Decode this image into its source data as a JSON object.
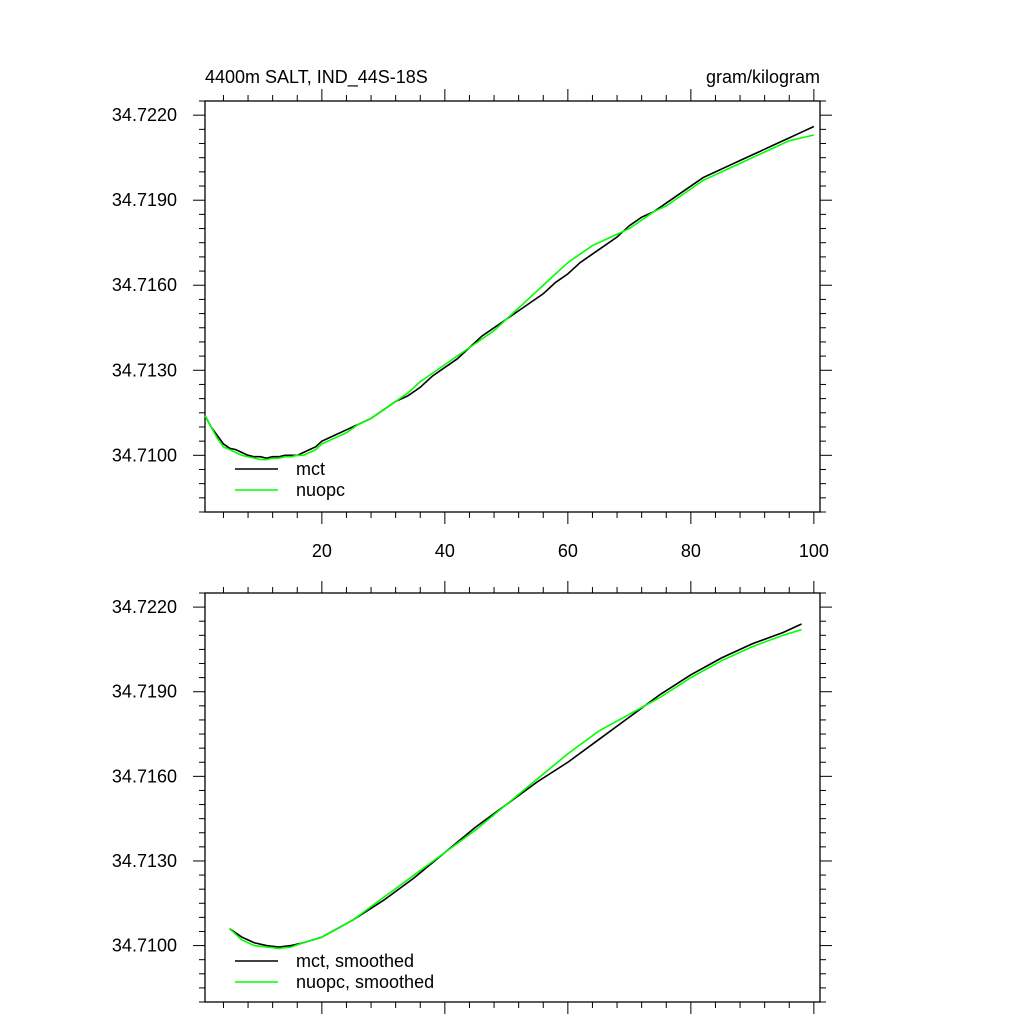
{
  "chart_data": [
    {
      "type": "line",
      "title": "4400m SALT, IND_44S-18S",
      "units": "gram/kilogram",
      "xlim": [
        1,
        101
      ],
      "ylim": [
        34.708,
        34.7225
      ],
      "x_ticks": [
        20,
        40,
        60,
        80,
        100
      ],
      "x_tick_labels": [
        "20",
        "40",
        "60",
        "80",
        "100"
      ],
      "y_ticks": [
        34.71,
        34.713,
        34.716,
        34.719,
        34.722
      ],
      "y_tick_labels": [
        "34.7100",
        "34.7130",
        "34.7160",
        "34.7190",
        "34.7220"
      ],
      "legend_position": "bottom-left",
      "series": [
        {
          "name": "mct",
          "color": "#000000",
          "x": [
            1,
            2,
            3,
            4,
            5,
            6,
            7,
            8,
            9,
            10,
            11,
            12,
            13,
            14,
            15,
            16,
            17,
            18,
            19,
            20,
            22,
            24,
            26,
            28,
            30,
            32,
            34,
            36,
            38,
            40,
            42,
            44,
            46,
            48,
            50,
            52,
            54,
            56,
            58,
            60,
            62,
            64,
            66,
            68,
            70,
            72,
            74,
            76,
            78,
            80,
            82,
            84,
            86,
            88,
            90,
            92,
            94,
            96,
            98,
            100
          ],
          "y": [
            34.7114,
            34.711,
            34.7107,
            34.7104,
            34.71025,
            34.7102,
            34.7101,
            34.71,
            34.70995,
            34.70995,
            34.7099,
            34.70995,
            34.70995,
            34.71,
            34.71,
            34.71,
            34.7101,
            34.7102,
            34.7103,
            34.7105,
            34.7107,
            34.7109,
            34.7111,
            34.7113,
            34.7116,
            34.7119,
            34.7121,
            34.7124,
            34.7128,
            34.7131,
            34.7134,
            34.7138,
            34.7142,
            34.7145,
            34.7148,
            34.7151,
            34.7154,
            34.7157,
            34.7161,
            34.7164,
            34.7168,
            34.7171,
            34.7174,
            34.7177,
            34.7181,
            34.7184,
            34.7186,
            34.7189,
            34.7192,
            34.7195,
            34.7198,
            34.72,
            34.7202,
            34.7204,
            34.7206,
            34.7208,
            34.721,
            34.7212,
            34.7214,
            34.7216
          ]
        },
        {
          "name": "nuopc",
          "color": "#00ff00",
          "x": [
            1,
            2,
            3,
            4,
            5,
            6,
            7,
            8,
            9,
            10,
            11,
            12,
            13,
            14,
            15,
            16,
            17,
            18,
            19,
            20,
            22,
            24,
            26,
            28,
            30,
            32,
            34,
            36,
            38,
            40,
            42,
            44,
            46,
            48,
            50,
            52,
            54,
            56,
            58,
            60,
            62,
            64,
            66,
            68,
            70,
            72,
            74,
            76,
            78,
            80,
            82,
            84,
            86,
            88,
            90,
            92,
            94,
            96,
            98,
            100
          ],
          "y": [
            34.7114,
            34.711,
            34.7106,
            34.7103,
            34.7102,
            34.7101,
            34.71,
            34.70995,
            34.7099,
            34.70985,
            34.70985,
            34.7099,
            34.7099,
            34.70995,
            34.70995,
            34.71,
            34.71,
            34.7101,
            34.7102,
            34.7104,
            34.7106,
            34.7108,
            34.7111,
            34.7113,
            34.7116,
            34.7119,
            34.7122,
            34.7126,
            34.7129,
            34.7132,
            34.7135,
            34.7138,
            34.7141,
            34.7144,
            34.7148,
            34.7152,
            34.7156,
            34.716,
            34.7164,
            34.7168,
            34.7171,
            34.7174,
            34.7176,
            34.7178,
            34.718,
            34.7183,
            34.7186,
            34.7188,
            34.7191,
            34.7194,
            34.7197,
            34.7199,
            34.7201,
            34.7203,
            34.7205,
            34.7207,
            34.7209,
            34.7211,
            34.7212,
            34.7213
          ]
        }
      ]
    },
    {
      "type": "line",
      "xlim": [
        1,
        101
      ],
      "ylim": [
        34.708,
        34.7225
      ],
      "x_ticks": [
        20,
        40,
        60,
        80,
        100
      ],
      "y_ticks": [
        34.71,
        34.713,
        34.716,
        34.719,
        34.722
      ],
      "y_tick_labels": [
        "34.7100",
        "34.7130",
        "34.7160",
        "34.7190",
        "34.7220"
      ],
      "legend_position": "bottom-left",
      "series": [
        {
          "name": "mct, smoothed",
          "color": "#000000",
          "x": [
            5,
            7,
            9,
            11,
            13,
            15,
            17,
            20,
            25,
            30,
            35,
            40,
            45,
            50,
            55,
            60,
            65,
            70,
            75,
            80,
            85,
            90,
            95,
            98
          ],
          "y": [
            34.7106,
            34.7103,
            34.7101,
            34.71,
            34.70995,
            34.71,
            34.7101,
            34.7103,
            34.7109,
            34.7116,
            34.7124,
            34.7133,
            34.7142,
            34.715,
            34.7158,
            34.7165,
            34.7173,
            34.7181,
            34.7189,
            34.7196,
            34.7202,
            34.7207,
            34.7211,
            34.7214
          ]
        },
        {
          "name": "nuopc, smoothed",
          "color": "#00ff00",
          "x": [
            5,
            7,
            9,
            11,
            13,
            15,
            17,
            20,
            25,
            30,
            35,
            40,
            45,
            50,
            55,
            60,
            65,
            70,
            75,
            80,
            85,
            90,
            95,
            98
          ],
          "y": [
            34.7106,
            34.7102,
            34.71,
            34.70995,
            34.7099,
            34.70995,
            34.7101,
            34.7103,
            34.7109,
            34.7117,
            34.7125,
            34.7133,
            34.7141,
            34.715,
            34.7159,
            34.7168,
            34.7176,
            34.7182,
            34.7188,
            34.7195,
            34.7201,
            34.7206,
            34.721,
            34.7212
          ]
        }
      ]
    }
  ]
}
